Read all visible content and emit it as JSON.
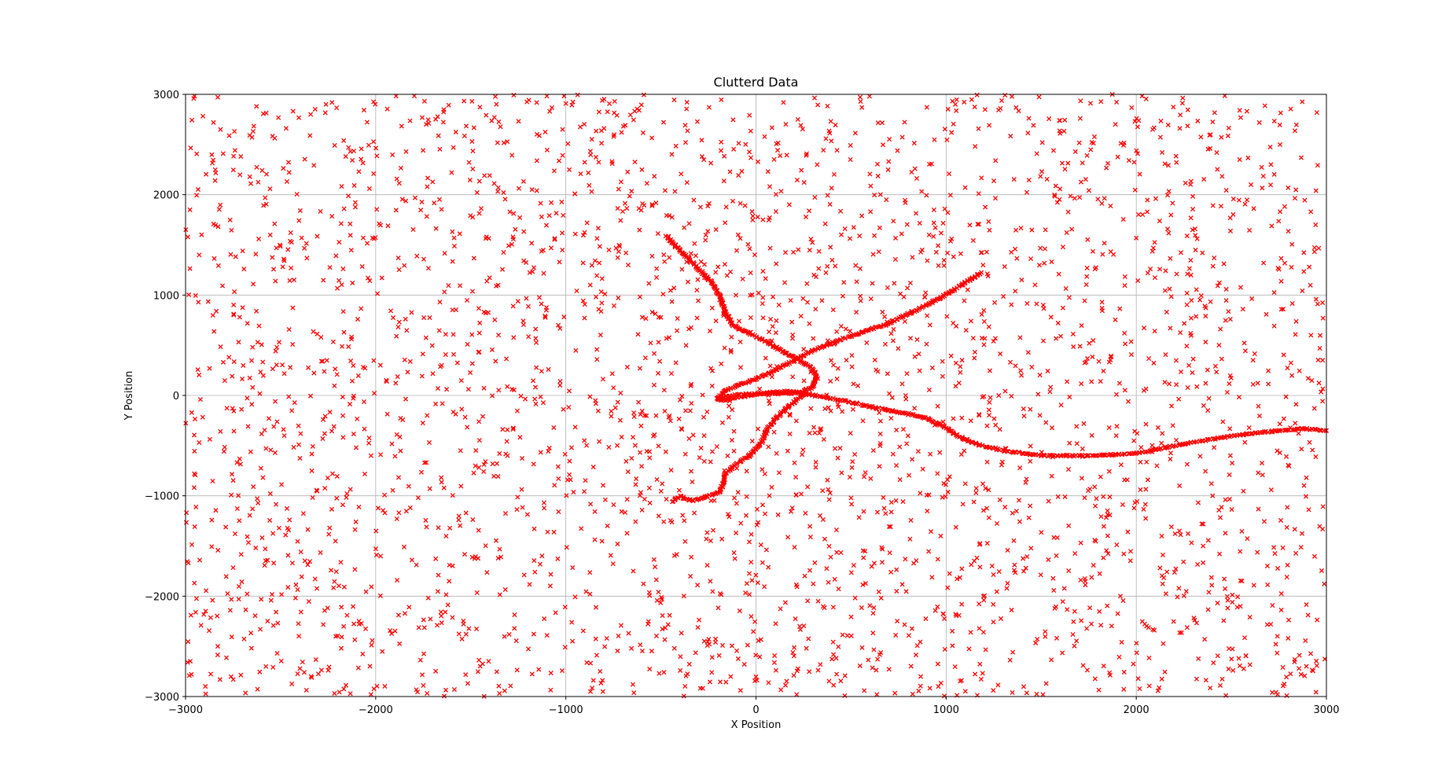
{
  "chart_data": {
    "type": "scatter",
    "title": "Clutterd Data",
    "xlabel": "X Position",
    "ylabel": "Y Position",
    "xlim": [
      -3000,
      3000
    ],
    "ylim": [
      -3000,
      3000
    ],
    "grid": true,
    "marker": "x",
    "color": "#ff0000",
    "x_ticks": [
      -3000,
      -2000,
      -1000,
      0,
      1000,
      2000,
      3000
    ],
    "y_ticks": [
      -3000,
      -2000,
      -1000,
      0,
      1000,
      2000,
      3000
    ],
    "x_tick_labels": [
      "−3000",
      "−2000",
      "−1000",
      "0",
      "1000",
      "2000",
      "3000"
    ],
    "y_tick_labels": [
      "−3000",
      "−2000",
      "−1000",
      "0",
      "1000",
      "2000",
      "3000"
    ],
    "clutter": {
      "count": 3000,
      "distribution": "uniform",
      "x_range": [
        -3000,
        3000
      ],
      "y_range": [
        -3000,
        3000
      ]
    },
    "tracks": [
      {
        "points": [
          [
            -470,
            1590
          ],
          [
            -420,
            1480
          ],
          [
            -350,
            1350
          ],
          [
            -280,
            1220
          ],
          [
            -220,
            1100
          ],
          [
            -190,
            980
          ],
          [
            -160,
            820
          ],
          [
            -120,
            700
          ],
          [
            -40,
            620
          ],
          [
            50,
            540
          ],
          [
            140,
            440
          ],
          [
            230,
            350
          ],
          [
            290,
            280
          ],
          [
            320,
            180
          ],
          [
            300,
            80
          ],
          [
            230,
            30
          ],
          [
            120,
            20
          ],
          [
            20,
            20
          ],
          [
            -80,
            10
          ],
          [
            -160,
            -10
          ],
          [
            -200,
            -40
          ]
        ]
      },
      {
        "points": [
          [
            1180,
            1220
          ],
          [
            1080,
            1100
          ],
          [
            960,
            960
          ],
          [
            830,
            840
          ],
          [
            700,
            720
          ],
          [
            560,
            630
          ],
          [
            420,
            540
          ],
          [
            290,
            440
          ],
          [
            180,
            330
          ],
          [
            80,
            230
          ],
          [
            -20,
            150
          ],
          [
            -110,
            90
          ],
          [
            -170,
            40
          ],
          [
            -200,
            -30
          ],
          [
            -170,
            -50
          ],
          [
            -70,
            -10
          ],
          [
            40,
            20
          ],
          [
            150,
            40
          ],
          [
            250,
            30
          ]
        ]
      },
      {
        "points": [
          [
            240,
            20
          ],
          [
            340,
            -10
          ],
          [
            480,
            -60
          ],
          [
            620,
            -120
          ],
          [
            760,
            -170
          ],
          [
            890,
            -220
          ],
          [
            980,
            -300
          ],
          [
            1060,
            -400
          ],
          [
            1180,
            -500
          ],
          [
            1340,
            -560
          ],
          [
            1500,
            -600
          ],
          [
            1700,
            -600
          ],
          [
            1900,
            -590
          ],
          [
            2000,
            -580
          ],
          [
            2150,
            -520
          ],
          [
            2300,
            -470
          ],
          [
            2450,
            -420
          ],
          [
            2600,
            -380
          ],
          [
            2750,
            -350
          ],
          [
            2880,
            -330
          ],
          [
            3000,
            -350
          ]
        ]
      },
      {
        "points": [
          [
            260,
            20
          ],
          [
            190,
            -80
          ],
          [
            120,
            -200
          ],
          [
            60,
            -330
          ],
          [
            30,
            -460
          ],
          [
            -20,
            -580
          ],
          [
            -100,
            -680
          ],
          [
            -160,
            -780
          ],
          [
            -170,
            -870
          ],
          [
            -190,
            -960
          ],
          [
            -250,
            -1000
          ],
          [
            -330,
            -1050
          ],
          [
            -360,
            -1040
          ],
          [
            -400,
            -1000
          ],
          [
            -440,
            -1060
          ]
        ]
      }
    ]
  }
}
